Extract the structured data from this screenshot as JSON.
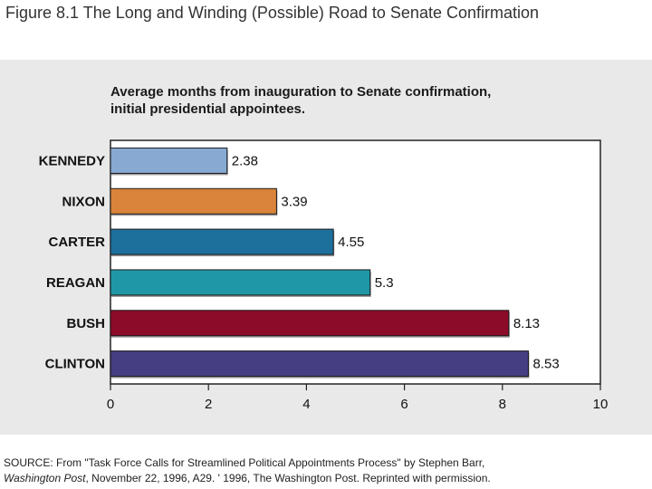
{
  "figure_title": "Figure 8.1  The Long and Winding (Possible) Road to Senate Confirmation",
  "chart_data": {
    "type": "bar",
    "orientation": "horizontal",
    "title": "Average months from inauguration to Senate confirmation, initial presidential appointees.",
    "title_lines": [
      "Average months from inauguration to Senate confirmation,",
      "initial presidential appointees."
    ],
    "categories": [
      "KENNEDY",
      "NIXON",
      "CARTER",
      "REAGAN",
      "BUSH",
      "CLINTON"
    ],
    "values": [
      2.38,
      3.39,
      4.55,
      5.3,
      8.13,
      8.53
    ],
    "value_labels": [
      "2.38",
      "3.39",
      "4.55",
      "5.3",
      "8.13",
      "8.53"
    ],
    "colors": [
      "#87a9d2",
      "#d9843a",
      "#1d6f9c",
      "#2097a6",
      "#8c0b28",
      "#453e82"
    ],
    "xlim": [
      0,
      10
    ],
    "xticks": [
      "0",
      "2",
      "4",
      "6",
      "8",
      "10"
    ],
    "xlabel": "",
    "ylabel": "",
    "grid": false
  },
  "source": {
    "line1": "SOURCE: From \"Task Force Calls for Streamlined Political Appointments Process\" by Stephen Barr,",
    "line2_italic": "Washington Post",
    "line2_rest": ", November 22, 1996, A29. ' 1996, The Washington Post. Reprinted with permission."
  }
}
